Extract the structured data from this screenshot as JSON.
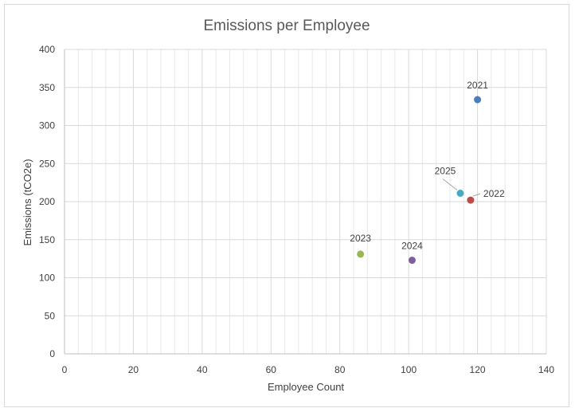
{
  "chart_data": {
    "type": "scatter",
    "title": "Emissions per Employee",
    "xlabel": "Employee Count",
    "ylabel": "Emissions (tCO2e)",
    "xlim": [
      0,
      140
    ],
    "ylim": [
      0,
      400
    ],
    "x_ticks": [
      0,
      20,
      40,
      60,
      80,
      100,
      120,
      140
    ],
    "y_ticks": [
      0,
      50,
      100,
      150,
      200,
      250,
      300,
      350,
      400
    ],
    "x_tick_labels": [
      "0",
      "20",
      "40",
      "60",
      "80",
      "100",
      "120",
      "140"
    ],
    "y_tick_labels": [
      "0",
      "50",
      "100",
      "150",
      "200",
      "250",
      "300",
      "350",
      "400"
    ],
    "grid": true,
    "points": [
      {
        "label": "2021",
        "x": 120,
        "y": 334,
        "color": "#4a7ebb"
      },
      {
        "label": "2022",
        "x": 118,
        "y": 202,
        "color": "#be4b48"
      },
      {
        "label": "2023",
        "x": 86,
        "y": 131,
        "color": "#98b954"
      },
      {
        "label": "2024",
        "x": 101,
        "y": 123,
        "color": "#7d5fa0"
      },
      {
        "label": "2025",
        "x": 115,
        "y": 211,
        "color": "#46aac5"
      }
    ]
  }
}
